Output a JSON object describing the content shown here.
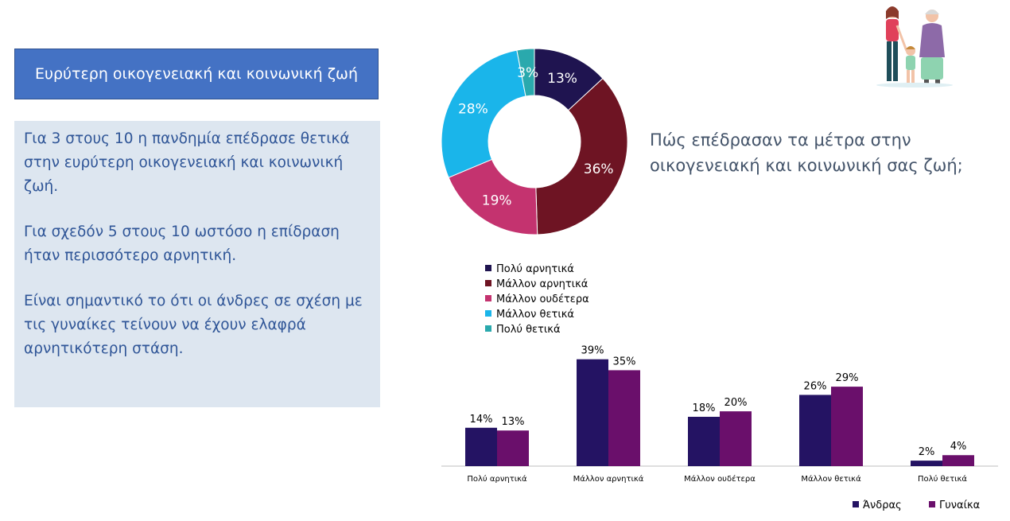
{
  "title": "Ευρύτερη οικογενειακή και κοινωνική ζωή",
  "text_blocks": [
    "Για 3 στους 10 η πανδημία επέδρασε θετικά στην ευρύτερη οικογενειακή και κοινωνική ζωή.",
    "Για σχεδόν 5 στους 10 ωστόσο η επίδραση ήταν περισσότερο αρνητική.",
    "Είναι σημαντικό το ότι οι άνδρες σε σχέση με τις γυναίκες τείνουν να έχουν ελαφρά αρνητικότερη στάση."
  ],
  "question": "Πώς επέδρασαν τα μέτρα στην οικογενειακή και κοινωνική σας ζωή;",
  "illustration": "family-illustration",
  "chart_data": [
    {
      "type": "pie",
      "donut": true,
      "labels": [
        "Πολύ αρνητικά",
        "Μάλλον αρνητικά",
        "Μάλλον ουδέτερα",
        "Μάλλον θετικά",
        "Πολύ θετικά"
      ],
      "values": [
        13,
        36,
        19,
        28,
        3
      ],
      "value_labels": [
        "13%",
        "36%",
        "19%",
        "28%",
        "3%"
      ],
      "colors": [
        "#1f1450",
        "#6e1423",
        "#c4336f",
        "#1ab5ea",
        "#2aa9ad"
      ],
      "legend": "bottom-left"
    },
    {
      "type": "bar",
      "categories": [
        "Πολύ αρνητικά",
        "Μάλλον αρνητικά",
        "Μάλλον ουδέτερα",
        "Μάλλον θετικά",
        "Πολύ θετικά"
      ],
      "series": [
        {
          "name": "Άνδρας",
          "values": [
            14,
            39,
            18,
            26,
            2
          ],
          "labels": [
            "14%",
            "39%",
            "18%",
            "26%",
            "2%"
          ],
          "color": "#241363"
        },
        {
          "name": "Γυναίκα",
          "values": [
            13,
            35,
            20,
            29,
            4
          ],
          "labels": [
            "13%",
            "35%",
            "20%",
            "29%",
            "4%"
          ],
          "color": "#6a0f6b"
        }
      ],
      "ylim": [
        0,
        45
      ],
      "legend": "bottom-right"
    }
  ]
}
